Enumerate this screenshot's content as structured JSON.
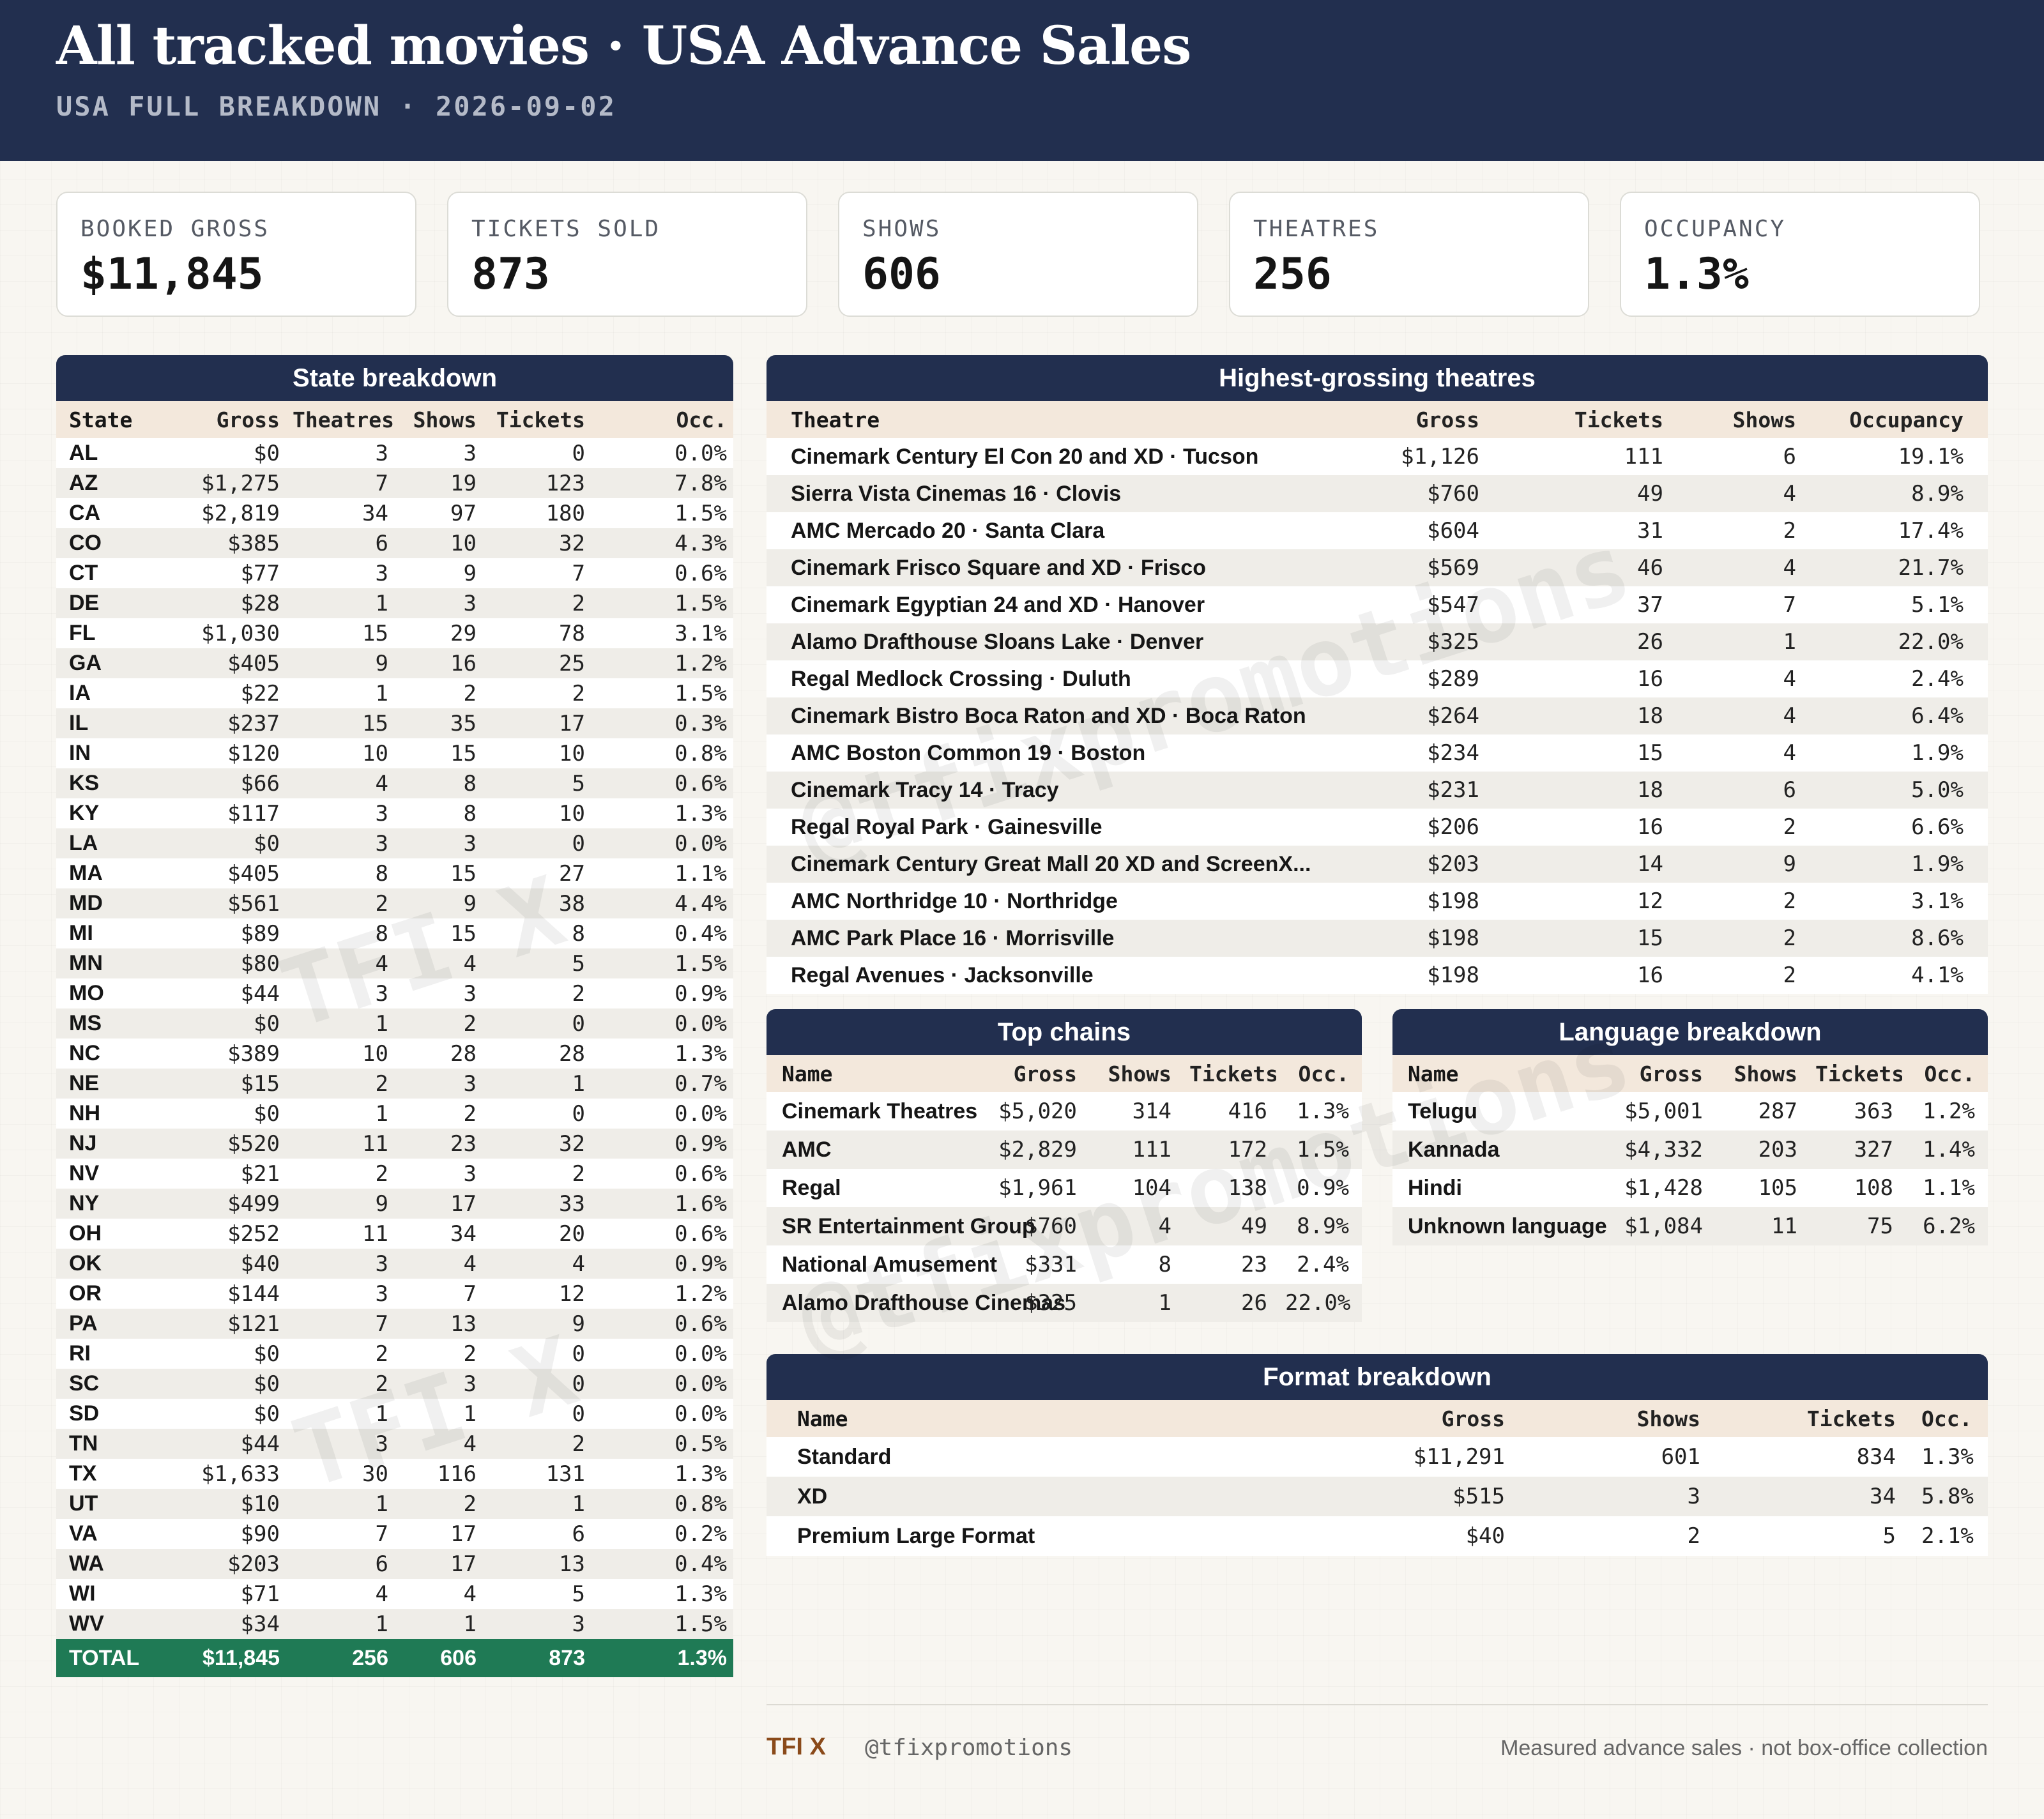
{
  "header": {
    "title": "All tracked movies · USA Advance Sales",
    "subtitle": "USA FULL BREAKDOWN · 2026-09-02"
  },
  "kpis": [
    {
      "label": "BOOKED GROSS",
      "value": "$11,845"
    },
    {
      "label": "TICKETS SOLD",
      "value": "873"
    },
    {
      "label": "SHOWS",
      "value": "606"
    },
    {
      "label": "THEATRES",
      "value": "256"
    },
    {
      "label": "OCCUPANCY",
      "value": "1.3%"
    }
  ],
  "state": {
    "title": "State breakdown",
    "columns": [
      "State",
      "Gross",
      "Theatres",
      "Shows",
      "Tickets",
      "Occ."
    ],
    "rows": [
      [
        "AL",
        "$0",
        "3",
        "3",
        "0",
        "0.0%"
      ],
      [
        "AZ",
        "$1,275",
        "7",
        "19",
        "123",
        "7.8%"
      ],
      [
        "CA",
        "$2,819",
        "34",
        "97",
        "180",
        "1.5%"
      ],
      [
        "CO",
        "$385",
        "6",
        "10",
        "32",
        "4.3%"
      ],
      [
        "CT",
        "$77",
        "3",
        "9",
        "7",
        "0.6%"
      ],
      [
        "DE",
        "$28",
        "1",
        "3",
        "2",
        "1.5%"
      ],
      [
        "FL",
        "$1,030",
        "15",
        "29",
        "78",
        "3.1%"
      ],
      [
        "GA",
        "$405",
        "9",
        "16",
        "25",
        "1.2%"
      ],
      [
        "IA",
        "$22",
        "1",
        "2",
        "2",
        "1.5%"
      ],
      [
        "IL",
        "$237",
        "15",
        "35",
        "17",
        "0.3%"
      ],
      [
        "IN",
        "$120",
        "10",
        "15",
        "10",
        "0.8%"
      ],
      [
        "KS",
        "$66",
        "4",
        "8",
        "5",
        "0.6%"
      ],
      [
        "KY",
        "$117",
        "3",
        "8",
        "10",
        "1.3%"
      ],
      [
        "LA",
        "$0",
        "3",
        "3",
        "0",
        "0.0%"
      ],
      [
        "MA",
        "$405",
        "8",
        "15",
        "27",
        "1.1%"
      ],
      [
        "MD",
        "$561",
        "2",
        "9",
        "38",
        "4.4%"
      ],
      [
        "MI",
        "$89",
        "8",
        "15",
        "8",
        "0.4%"
      ],
      [
        "MN",
        "$80",
        "4",
        "4",
        "5",
        "1.5%"
      ],
      [
        "MO",
        "$44",
        "3",
        "3",
        "2",
        "0.9%"
      ],
      [
        "MS",
        "$0",
        "1",
        "2",
        "0",
        "0.0%"
      ],
      [
        "NC",
        "$389",
        "10",
        "28",
        "28",
        "1.3%"
      ],
      [
        "NE",
        "$15",
        "2",
        "3",
        "1",
        "0.7%"
      ],
      [
        "NH",
        "$0",
        "1",
        "2",
        "0",
        "0.0%"
      ],
      [
        "NJ",
        "$520",
        "11",
        "23",
        "32",
        "0.9%"
      ],
      [
        "NV",
        "$21",
        "2",
        "3",
        "2",
        "0.6%"
      ],
      [
        "NY",
        "$499",
        "9",
        "17",
        "33",
        "1.6%"
      ],
      [
        "OH",
        "$252",
        "11",
        "34",
        "20",
        "0.6%"
      ],
      [
        "OK",
        "$40",
        "3",
        "4",
        "4",
        "0.9%"
      ],
      [
        "OR",
        "$144",
        "3",
        "7",
        "12",
        "1.2%"
      ],
      [
        "PA",
        "$121",
        "7",
        "13",
        "9",
        "0.6%"
      ],
      [
        "RI",
        "$0",
        "2",
        "2",
        "0",
        "0.0%"
      ],
      [
        "SC",
        "$0",
        "2",
        "3",
        "0",
        "0.0%"
      ],
      [
        "SD",
        "$0",
        "1",
        "1",
        "0",
        "0.0%"
      ],
      [
        "TN",
        "$44",
        "3",
        "4",
        "2",
        "0.5%"
      ],
      [
        "TX",
        "$1,633",
        "30",
        "116",
        "131",
        "1.3%"
      ],
      [
        "UT",
        "$10",
        "1",
        "2",
        "1",
        "0.8%"
      ],
      [
        "VA",
        "$90",
        "7",
        "17",
        "6",
        "0.2%"
      ],
      [
        "WA",
        "$203",
        "6",
        "17",
        "13",
        "0.4%"
      ],
      [
        "WI",
        "$71",
        "4",
        "4",
        "5",
        "1.3%"
      ],
      [
        "WV",
        "$34",
        "1",
        "1",
        "3",
        "1.5%"
      ]
    ],
    "total": [
      "TOTAL",
      "$11,845",
      "256",
      "606",
      "873",
      "1.3%"
    ]
  },
  "theatres": {
    "title": "Highest-grossing theatres",
    "columns": [
      "Theatre",
      "Gross",
      "Tickets",
      "Shows",
      "Occupancy"
    ],
    "rows": [
      [
        "Cinemark Century El Con 20 and XD · Tucson",
        "$1,126",
        "111",
        "6",
        "19.1%"
      ],
      [
        "Sierra Vista Cinemas 16 · Clovis",
        "$760",
        "49",
        "4",
        "8.9%"
      ],
      [
        "AMC Mercado 20 · Santa Clara",
        "$604",
        "31",
        "2",
        "17.4%"
      ],
      [
        "Cinemark Frisco Square and XD · Frisco",
        "$569",
        "46",
        "4",
        "21.7%"
      ],
      [
        "Cinemark Egyptian 24 and XD · Hanover",
        "$547",
        "37",
        "7",
        "5.1%"
      ],
      [
        "Alamo Drafthouse Sloans Lake · Denver",
        "$325",
        "26",
        "1",
        "22.0%"
      ],
      [
        "Regal Medlock Crossing · Duluth",
        "$289",
        "16",
        "4",
        "2.4%"
      ],
      [
        "Cinemark Bistro Boca Raton and XD · Boca Raton",
        "$264",
        "18",
        "4",
        "6.4%"
      ],
      [
        "AMC Boston Common 19 · Boston",
        "$234",
        "15",
        "4",
        "1.9%"
      ],
      [
        "Cinemark Tracy 14 · Tracy",
        "$231",
        "18",
        "6",
        "5.0%"
      ],
      [
        "Regal Royal Park · Gainesville",
        "$206",
        "16",
        "2",
        "6.6%"
      ],
      [
        "Cinemark Century Great Mall 20 XD and ScreenX...",
        "$203",
        "14",
        "9",
        "1.9%"
      ],
      [
        "AMC Northridge 10 · Northridge",
        "$198",
        "12",
        "2",
        "3.1%"
      ],
      [
        "AMC Park Place 16 · Morrisville",
        "$198",
        "15",
        "2",
        "8.6%"
      ],
      [
        "Regal Avenues · Jacksonville",
        "$198",
        "16",
        "2",
        "4.1%"
      ]
    ]
  },
  "chains": {
    "title": "Top chains",
    "columns": [
      "Name",
      "Gross",
      "Shows",
      "Tickets",
      "Occ."
    ],
    "rows": [
      [
        "Cinemark Theatres",
        "$5,020",
        "314",
        "416",
        "1.3%"
      ],
      [
        "AMC",
        "$2,829",
        "111",
        "172",
        "1.5%"
      ],
      [
        "Regal",
        "$1,961",
        "104",
        "138",
        "0.9%"
      ],
      [
        "SR Entertainment Group",
        "$760",
        "4",
        "49",
        "8.9%"
      ],
      [
        "National Amusement",
        "$331",
        "8",
        "23",
        "2.4%"
      ],
      [
        "Alamo Drafthouse Cinemas",
        "$325",
        "1",
        "26",
        "22.0%"
      ]
    ]
  },
  "languages": {
    "title": "Language breakdown",
    "columns": [
      "Name",
      "Gross",
      "Shows",
      "Tickets",
      "Occ."
    ],
    "rows": [
      [
        "Telugu",
        "$5,001",
        "287",
        "363",
        "1.2%"
      ],
      [
        "Kannada",
        "$4,332",
        "203",
        "327",
        "1.4%"
      ],
      [
        "Hindi",
        "$1,428",
        "105",
        "108",
        "1.1%"
      ],
      [
        "Unknown language",
        "$1,084",
        "11",
        "75",
        "6.2%"
      ]
    ]
  },
  "formats": {
    "title": "Format breakdown",
    "columns": [
      "Name",
      "Gross",
      "Shows",
      "Tickets",
      "Occ."
    ],
    "rows": [
      [
        "Standard",
        "$11,291",
        "601",
        "834",
        "1.3%"
      ],
      [
        "XD",
        "$515",
        "3",
        "34",
        "5.8%"
      ],
      [
        "Premium Large Format",
        "$40",
        "2",
        "5",
        "2.1%"
      ]
    ]
  },
  "watermark": {
    "brand": "TFI X",
    "handle": "@tfixpromotions"
  },
  "footer": {
    "brand": "TFI X",
    "handle": "@tfixpromotions",
    "note": "Measured advance sales · not box-office collection"
  }
}
